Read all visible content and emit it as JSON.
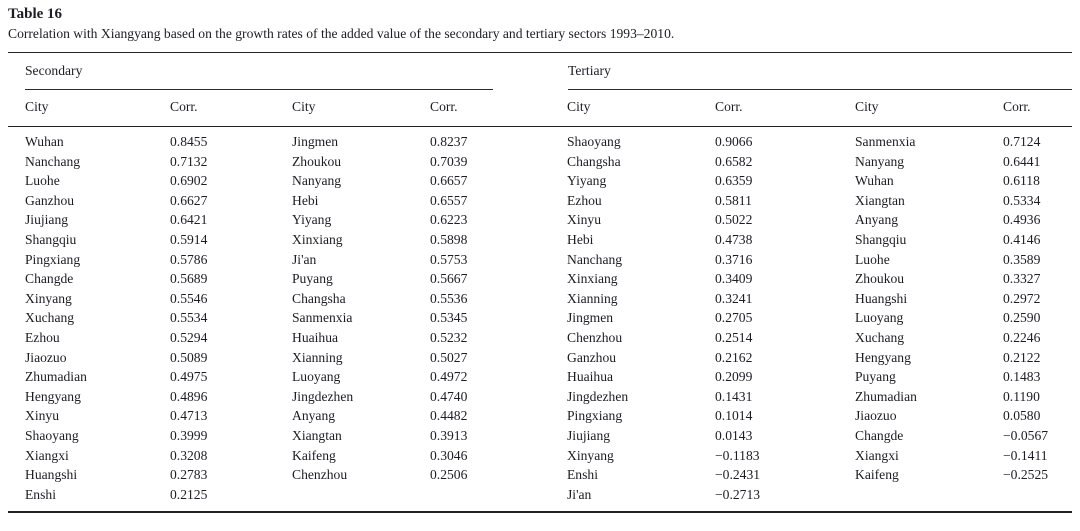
{
  "page": {
    "title": "Table 16",
    "caption": "Correlation with Xiangyang based on the growth rates of the added value of the secondary and tertiary sectors 1993–2010."
  },
  "colors": {
    "background": "#ffffff",
    "text": "#1c1c24",
    "rule": "#222228"
  },
  "table": {
    "groups": [
      "Secondary",
      "Tertiary"
    ],
    "column_headers": [
      "City",
      "Corr.",
      "City",
      "Corr.",
      "City",
      "Corr.",
      "City",
      "Corr."
    ],
    "rows": [
      [
        "Wuhan",
        "0.8455",
        "Jingmen",
        "0.8237",
        "Shaoyang",
        "0.9066",
        "Sanmenxia",
        "0.7124"
      ],
      [
        "Nanchang",
        "0.7132",
        "Zhoukou",
        "0.7039",
        "Changsha",
        "0.6582",
        "Nanyang",
        "0.6441"
      ],
      [
        "Luohe",
        "0.6902",
        "Nanyang",
        "0.6657",
        "Yiyang",
        "0.6359",
        "Wuhan",
        "0.6118"
      ],
      [
        "Ganzhou",
        "0.6627",
        "Hebi",
        "0.6557",
        "Ezhou",
        "0.5811",
        "Xiangtan",
        "0.5334"
      ],
      [
        "Jiujiang",
        "0.6421",
        "Yiyang",
        "0.6223",
        "Xinyu",
        "0.5022",
        "Anyang",
        "0.4936"
      ],
      [
        "Shangqiu",
        "0.5914",
        "Xinxiang",
        "0.5898",
        "Hebi",
        "0.4738",
        "Shangqiu",
        "0.4146"
      ],
      [
        "Pingxiang",
        "0.5786",
        "Ji'an",
        "0.5753",
        "Nanchang",
        "0.3716",
        "Luohe",
        "0.3589"
      ],
      [
        "Changde",
        "0.5689",
        "Puyang",
        "0.5667",
        "Xinxiang",
        "0.3409",
        "Zhoukou",
        "0.3327"
      ],
      [
        "Xinyang",
        "0.5546",
        "Changsha",
        "0.5536",
        "Xianning",
        "0.3241",
        "Huangshi",
        "0.2972"
      ],
      [
        "Xuchang",
        "0.5534",
        "Sanmenxia",
        "0.5345",
        "Jingmen",
        "0.2705",
        "Luoyang",
        "0.2590"
      ],
      [
        "Ezhou",
        "0.5294",
        "Huaihua",
        "0.5232",
        "Chenzhou",
        "0.2514",
        "Xuchang",
        "0.2246"
      ],
      [
        "Jiaozuo",
        "0.5089",
        "Xianning",
        "0.5027",
        "Ganzhou",
        "0.2162",
        "Hengyang",
        "0.2122"
      ],
      [
        "Zhumadian",
        "0.4975",
        "Luoyang",
        "0.4972",
        "Huaihua",
        "0.2099",
        "Puyang",
        "0.1483"
      ],
      [
        "Hengyang",
        "0.4896",
        "Jingdezhen",
        "0.4740",
        "Jingdezhen",
        "0.1431",
        "Zhumadian",
        "0.1190"
      ],
      [
        "Xinyu",
        "0.4713",
        "Anyang",
        "0.4482",
        "Pingxiang",
        "0.1014",
        "Jiaozuo",
        "0.0580"
      ],
      [
        "Shaoyang",
        "0.3999",
        "Xiangtan",
        "0.3913",
        "Jiujiang",
        "0.0143",
        "Changde",
        "−0.0567"
      ],
      [
        "Xiangxi",
        "0.3208",
        "Kaifeng",
        "0.3046",
        "Xinyang",
        "−0.1183",
        "Xiangxi",
        "−0.1411"
      ],
      [
        "Huangshi",
        "0.2783",
        "Chenzhou",
        "0.2506",
        "Enshi",
        "−0.2431",
        "Kaifeng",
        "−0.2525"
      ],
      [
        "Enshi",
        "0.2125",
        "",
        "",
        "Ji'an",
        "−0.2713",
        "",
        ""
      ]
    ]
  }
}
